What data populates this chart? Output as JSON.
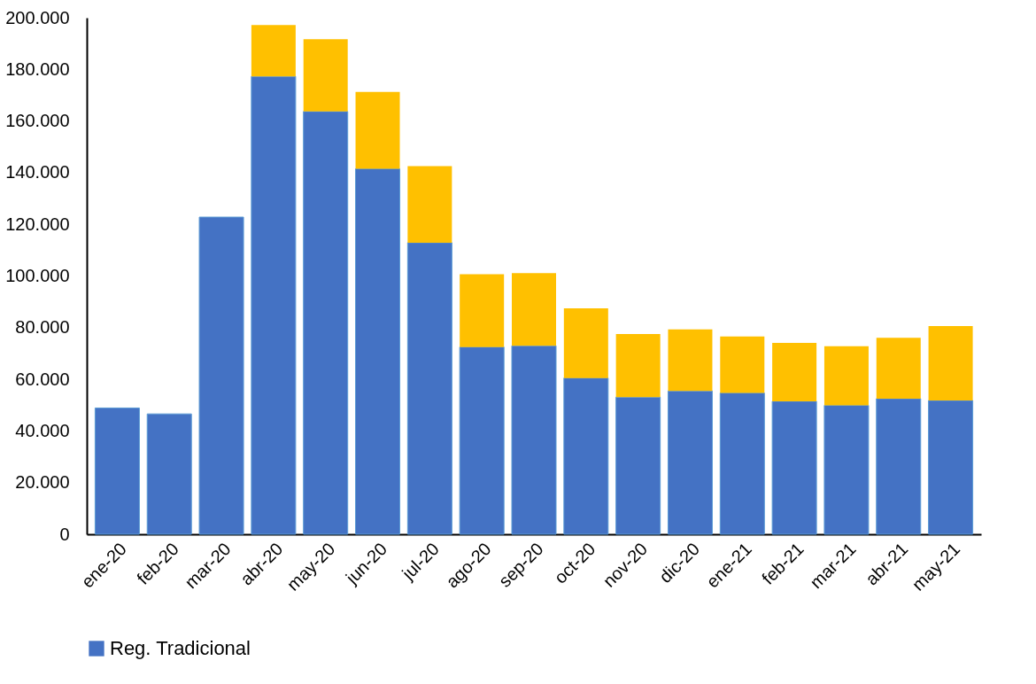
{
  "chart_data": {
    "type": "bar",
    "stacked": true,
    "categories": [
      "ene-20",
      "feb-20",
      "mar-20",
      "abr-20",
      "may-20",
      "jun-20",
      "jul-20",
      "ago-20",
      "sep-20",
      "oct-20",
      "nov-20",
      "dic-20",
      "ene-21",
      "feb-21",
      "mar-21",
      "abr-21",
      "may-21"
    ],
    "series": [
      {
        "name": "Reg. Tradicional",
        "color": "#4472c4",
        "values": [
          48900,
          46600,
          122800,
          177300,
          163700,
          141500,
          112900,
          72500,
          73000,
          60500,
          53100,
          55500,
          54700,
          51500,
          49900,
          52500,
          51800
        ]
      },
      {
        "color": "#ffc000",
        "values": [
          null,
          null,
          null,
          19900,
          28000,
          29800,
          29600,
          28200,
          28100,
          27000,
          24400,
          23800,
          21900,
          22600,
          22900,
          23600,
          28800
        ]
      }
    ],
    "ylim": [
      0,
      200000
    ],
    "yticks": [
      {
        "value": 0,
        "label": "0"
      },
      {
        "value": 20000,
        "label": "20.000"
      },
      {
        "value": 40000,
        "label": "40.000"
      },
      {
        "value": 60000,
        "label": "60.000"
      },
      {
        "value": 80000,
        "label": "80.000"
      },
      {
        "value": 100000,
        "label": "100.000"
      },
      {
        "value": 120000,
        "label": "120.000"
      },
      {
        "value": 140000,
        "label": "140.000"
      },
      {
        "value": 160000,
        "label": "160.000"
      },
      {
        "value": 180000,
        "label": "180.000"
      },
      {
        "value": 200000,
        "label": "200.000"
      }
    ],
    "grid": false,
    "legend": "bottom"
  }
}
